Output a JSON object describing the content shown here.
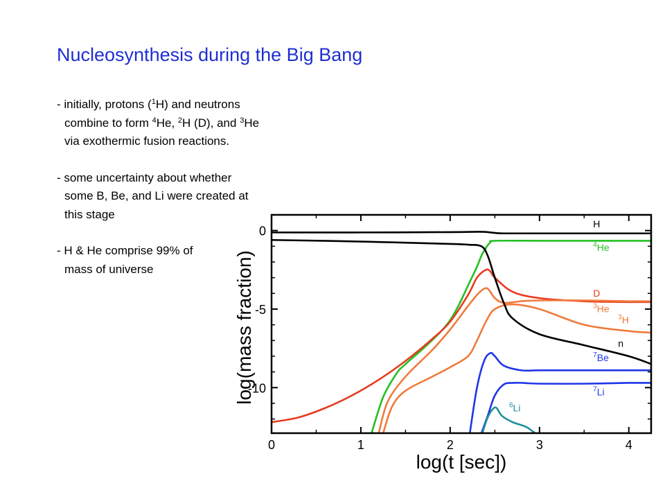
{
  "slide": {
    "title": "Nucleosynthesis during the Big Bang",
    "bullets": [
      {
        "lines": [
          [
            [
              "- initially, protons (",
              ""
            ],
            [
              "1",
              "sup"
            ],
            [
              "H) and neutrons",
              ""
            ]
          ],
          [
            [
              "combine to form ",
              ""
            ],
            [
              "4",
              "sup"
            ],
            [
              "He, ",
              ""
            ],
            [
              "2",
              "sup"
            ],
            [
              "H (D), and ",
              ""
            ],
            [
              "3",
              "sup"
            ],
            [
              "He",
              ""
            ]
          ],
          [
            [
              "via exothermic fusion reactions.",
              ""
            ]
          ]
        ]
      },
      {
        "lines": [
          [
            [
              "- some uncertainty about whether",
              ""
            ]
          ],
          [
            [
              "some B, Be, and Li were created at",
              ""
            ]
          ],
          [
            [
              "this stage",
              ""
            ]
          ]
        ]
      },
      {
        "lines": [
          [
            [
              "- H & He comprise 99% of",
              ""
            ]
          ],
          [
            [
              "mass of universe",
              ""
            ]
          ]
        ]
      }
    ]
  },
  "chart_data": {
    "type": "line",
    "title": "",
    "xlabel": "log(t [sec])",
    "ylabel": "log(mass fraction)",
    "xlim": [
      0,
      4.25
    ],
    "ylim": [
      -12.9,
      1.0
    ],
    "x_ticks": [
      0,
      1,
      2,
      3,
      4
    ],
    "y_ticks": [
      0,
      -5,
      -10
    ],
    "y_tick_labels": [
      "0",
      "-5",
      "-10"
    ],
    "grid": false,
    "series": [
      {
        "name": "H",
        "label_main": "H",
        "label_sup": "",
        "label_pre": "",
        "color": "#000000",
        "label_at": [
          3.6,
          0.2
        ],
        "x": [
          0,
          1,
          2,
          2.3,
          2.4,
          2.5,
          2.6,
          3,
          4,
          4.25
        ],
        "y": [
          -0.12,
          -0.12,
          -0.1,
          -0.08,
          -0.09,
          -0.15,
          -0.18,
          -0.18,
          -0.18,
          -0.18
        ]
      },
      {
        "name": "4He",
        "label_main": "He",
        "label_sup": "4",
        "label_pre": "",
        "color": "#22c022",
        "label_at": [
          3.6,
          -1.3
        ],
        "x": [
          1.12,
          1.25,
          1.4,
          1.5,
          1.7,
          1.9,
          2.0,
          2.1,
          2.2,
          2.3,
          2.35,
          2.4,
          2.45,
          2.5,
          3,
          4,
          4.25
        ],
        "y": [
          -12.9,
          -10.6,
          -9.1,
          -8.5,
          -7.5,
          -6.4,
          -5.7,
          -4.7,
          -3.5,
          -2.3,
          -1.6,
          -1.1,
          -0.75,
          -0.65,
          -0.65,
          -0.65,
          -0.65
        ]
      },
      {
        "name": "D",
        "label_main": "D",
        "label_sup": "",
        "label_pre": "",
        "color": "#e83a1e",
        "label_at": [
          3.6,
          -4.2
        ],
        "x": [
          0,
          0.3,
          0.6,
          0.9,
          1.2,
          1.5,
          1.8,
          2.0,
          2.2,
          2.3,
          2.4,
          2.45,
          2.5,
          2.7,
          3,
          3.5,
          4,
          4.25
        ],
        "y": [
          -12.2,
          -11.9,
          -11.3,
          -10.5,
          -9.5,
          -8.3,
          -6.9,
          -5.8,
          -4.1,
          -3.0,
          -2.5,
          -2.6,
          -3.0,
          -3.9,
          -4.3,
          -4.5,
          -4.55,
          -4.55
        ]
      },
      {
        "name": "3He",
        "label_main": "He",
        "label_sup": "3",
        "label_pre": "",
        "color": "#f07a3c",
        "label_at": [
          3.6,
          -5.2
        ],
        "x": [
          1.2,
          1.3,
          1.5,
          1.8,
          2.0,
          2.2,
          2.3,
          2.38,
          2.43,
          2.5,
          2.6,
          2.8,
          3,
          3.5,
          4,
          4.25
        ],
        "y": [
          -12.9,
          -10.9,
          -9.3,
          -7.6,
          -6.3,
          -4.8,
          -4.1,
          -3.7,
          -3.75,
          -4.3,
          -4.6,
          -4.5,
          -4.45,
          -4.45,
          -4.5,
          -4.5
        ]
      },
      {
        "name": "3H",
        "label_main": "H",
        "label_sup": "3",
        "label_pre": "",
        "color": "#f07a3c",
        "label_at": [
          3.88,
          -5.9
        ],
        "x": [
          1.25,
          1.35,
          1.5,
          1.8,
          2.0,
          2.2,
          2.3,
          2.4,
          2.5,
          2.7,
          3,
          3.5,
          4,
          4.25
        ],
        "y": [
          -12.9,
          -11.2,
          -10.2,
          -9.3,
          -8.7,
          -8.0,
          -7.0,
          -5.8,
          -5.0,
          -4.7,
          -5.0,
          -6.0,
          -6.4,
          -6.5
        ]
      },
      {
        "name": "n",
        "label_main": "n",
        "label_sup": "",
        "label_pre": "",
        "color": "#000000",
        "label_at": [
          3.88,
          -7.4
        ],
        "x": [
          0,
          1,
          2,
          2.2,
          2.35,
          2.42,
          2.5,
          2.6,
          2.7,
          3.0,
          3.5,
          4.0,
          4.25
        ],
        "y": [
          -0.6,
          -0.7,
          -0.85,
          -0.9,
          -1.0,
          -1.6,
          -3.0,
          -4.6,
          -5.6,
          -6.6,
          -7.3,
          -8.0,
          -8.5
        ]
      },
      {
        "name": "7Be",
        "label_main": "Be",
        "label_sup": "7",
        "label_pre": "",
        "color": "#1f35e8",
        "label_at": [
          3.6,
          -8.3
        ],
        "x": [
          2.22,
          2.3,
          2.38,
          2.45,
          2.5,
          2.6,
          2.8,
          3.0,
          3.5,
          4.0,
          4.25
        ],
        "y": [
          -12.9,
          -10.0,
          -8.3,
          -7.8,
          -8.0,
          -8.6,
          -8.9,
          -8.9,
          -8.9,
          -8.9,
          -8.9
        ]
      },
      {
        "name": "7Li",
        "label_main": "Li",
        "label_sup": "7",
        "label_pre": "",
        "color": "#1f35e8",
        "label_at": [
          3.6,
          -10.5
        ],
        "x": [
          2.35,
          2.42,
          2.5,
          2.6,
          2.7,
          2.8,
          3.0,
          3.5,
          4.0,
          4.25
        ],
        "y": [
          -12.9,
          -11.8,
          -10.5,
          -9.8,
          -9.7,
          -9.7,
          -9.75,
          -9.75,
          -9.7,
          -9.7
        ]
      },
      {
        "name": "6Li",
        "label_main": "Li",
        "label_sup": "6",
        "label_pre": "",
        "color": "#1f8f99",
        "label_at": [
          2.66,
          -11.5
        ],
        "x": [
          2.36,
          2.42,
          2.48,
          2.52,
          2.58,
          2.7,
          2.85,
          2.95
        ],
        "y": [
          -12.9,
          -11.9,
          -11.35,
          -11.3,
          -11.8,
          -12.2,
          -12.5,
          -12.9
        ]
      }
    ]
  }
}
